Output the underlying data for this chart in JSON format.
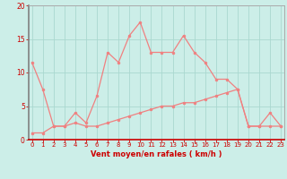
{
  "xlabel": "Vent moyen/en rafales ( km/h )",
  "x": [
    0,
    1,
    2,
    3,
    4,
    5,
    6,
    7,
    8,
    9,
    10,
    11,
    12,
    13,
    14,
    15,
    16,
    17,
    18,
    19,
    20,
    21,
    22,
    23
  ],
  "y_rafales": [
    11.5,
    7.5,
    2.0,
    2.0,
    4.0,
    2.5,
    6.5,
    13.0,
    11.5,
    15.5,
    17.5,
    13.0,
    13.0,
    13.0,
    15.5,
    13.0,
    11.5,
    9.0,
    9.0,
    7.5,
    2.0,
    2.0,
    4.0,
    2.0
  ],
  "y_moyen": [
    1.0,
    1.0,
    2.0,
    2.0,
    2.5,
    2.0,
    2.0,
    2.5,
    3.0,
    3.5,
    4.0,
    4.5,
    5.0,
    5.0,
    5.5,
    5.5,
    6.0,
    6.5,
    7.0,
    7.5,
    2.0,
    2.0,
    2.0,
    2.0
  ],
  "line_color": "#f08080",
  "background_color": "#cceee8",
  "grid_color": "#aad8d0",
  "axis_label_color": "#cc0000",
  "tick_color": "#cc0000",
  "spine_color_left": "#808080",
  "spine_color_bottom": "#cc0000",
  "ylim": [
    0,
    20
  ],
  "xlim": [
    0,
    23
  ],
  "yticks": [
    0,
    5,
    10,
    15,
    20
  ],
  "xticks": [
    0,
    1,
    2,
    3,
    4,
    5,
    6,
    7,
    8,
    9,
    10,
    11,
    12,
    13,
    14,
    15,
    16,
    17,
    18,
    19,
    20,
    21,
    22,
    23
  ]
}
